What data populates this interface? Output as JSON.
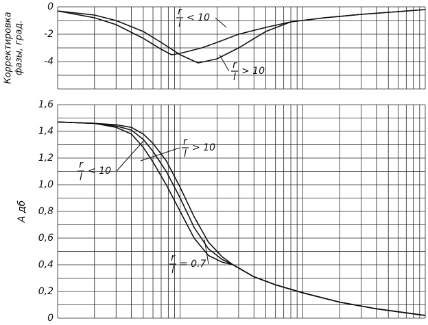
{
  "chart_data": [
    {
      "type": "line",
      "y_label_lines": [
        "Корректировка",
        "фазы, град."
      ],
      "xscale": "log",
      "xlim": [
        0.1,
        100
      ],
      "x_gridlines": [
        0.1,
        0.2,
        0.3,
        0.4,
        0.5,
        0.6,
        0.7,
        0.8,
        0.9,
        1,
        2,
        3,
        4,
        5,
        6,
        7,
        8,
        9,
        10,
        20,
        30,
        40,
        50,
        60,
        70,
        80,
        90,
        100
      ],
      "ylim": [
        -6,
        0
      ],
      "yticks": [
        0,
        -2,
        -4
      ],
      "y_gridlines": [
        0,
        -1,
        -2,
        -3,
        -4,
        -5,
        -6
      ],
      "series": [
        {
          "color": "#111111",
          "x": [
            0.1,
            0.2,
            0.3,
            0.5,
            0.7,
            0.85,
            1,
            1.5,
            2,
            3,
            5,
            8,
            15,
            30,
            60,
            100
          ],
          "values": [
            -0.3,
            -0.8,
            -1.3,
            -2.3,
            -3.1,
            -3.5,
            -3.4,
            -3.0,
            -2.6,
            -2.0,
            -1.5,
            -1.1,
            -0.8,
            -0.55,
            -0.35,
            -0.2
          ]
        },
        {
          "color": "#111111",
          "x": [
            0.1,
            0.2,
            0.3,
            0.5,
            0.7,
            1,
            1.4,
            2,
            3,
            5,
            8,
            15,
            30,
            60,
            100
          ],
          "values": [
            -0.3,
            -0.6,
            -1.0,
            -1.8,
            -2.6,
            -3.5,
            -4.1,
            -3.8,
            -3.0,
            -1.8,
            -1.1,
            -0.8,
            -0.55,
            -0.35,
            -0.2
          ]
        }
      ],
      "annotations": [
        {
          "numerator": "r",
          "denominator": "l",
          "relation": "< 10"
        },
        {
          "numerator": "r",
          "denominator": "l",
          "relation": "> 10"
        }
      ]
    },
    {
      "type": "line",
      "y_label": "A дб",
      "xscale": "log",
      "xlim": [
        0.1,
        100
      ],
      "x_gridlines": [
        0.1,
        0.2,
        0.3,
        0.4,
        0.5,
        0.6,
        0.7,
        0.8,
        0.9,
        1,
        2,
        3,
        4,
        5,
        6,
        7,
        8,
        9,
        10,
        20,
        30,
        40,
        50,
        60,
        70,
        80,
        90,
        100
      ],
      "ylim": [
        0,
        1.6
      ],
      "yticks": [
        0,
        {
          "value": 0.2,
          "label": "0,2"
        },
        {
          "value": 0.4,
          "label": "0,4"
        },
        {
          "value": 0.6,
          "label": "0,6"
        },
        {
          "value": 0.8,
          "label": "0,8"
        },
        {
          "value": 1.0,
          "label": "1,0"
        },
        {
          "value": 1.2,
          "label": "1,2"
        },
        {
          "value": 1.4,
          "label": "1,4"
        },
        {
          "value": 1.6,
          "label": "1,6"
        }
      ],
      "y_gridlines": [
        0,
        0.1,
        0.2,
        0.3,
        0.4,
        0.5,
        0.6,
        0.7,
        0.8,
        0.9,
        1.0,
        1.1,
        1.2,
        1.3,
        1.4,
        1.5,
        1.6
      ],
      "x": [
        0.1,
        0.2,
        0.3,
        0.4,
        0.5,
        0.6,
        0.77,
        1,
        1.3,
        1.7,
        2.2,
        2.7,
        4,
        6,
        10,
        20,
        40,
        100
      ],
      "series": [
        {
          "color": "#111111",
          "values": [
            1.47,
            1.46,
            1.43,
            1.38,
            1.28,
            1.17,
            1.0,
            0.8,
            0.6,
            0.47,
            0.42,
            0.4,
            0.31,
            0.25,
            0.19,
            0.12,
            0.07,
            0.02
          ]
        },
        {
          "color": "#111111",
          "values": [
            1.47,
            1.46,
            1.44,
            1.41,
            1.34,
            1.25,
            1.1,
            0.9,
            0.68,
            0.52,
            0.44,
            0.4,
            0.31,
            0.25,
            0.19,
            0.12,
            0.07,
            0.02
          ]
        },
        {
          "color": "#111111",
          "values": [
            1.47,
            1.46,
            1.45,
            1.43,
            1.38,
            1.31,
            1.18,
            0.98,
            0.76,
            0.57,
            0.46,
            0.4,
            0.31,
            0.25,
            0.19,
            0.12,
            0.07,
            0.02
          ]
        }
      ],
      "annotations": [
        {
          "numerator": "r",
          "denominator": "l",
          "relation": "> 10"
        },
        {
          "numerator": "r",
          "denominator": "l",
          "relation": "< 10"
        },
        {
          "numerator": "r",
          "denominator": "l",
          "relation": "= 0.7"
        }
      ]
    }
  ]
}
